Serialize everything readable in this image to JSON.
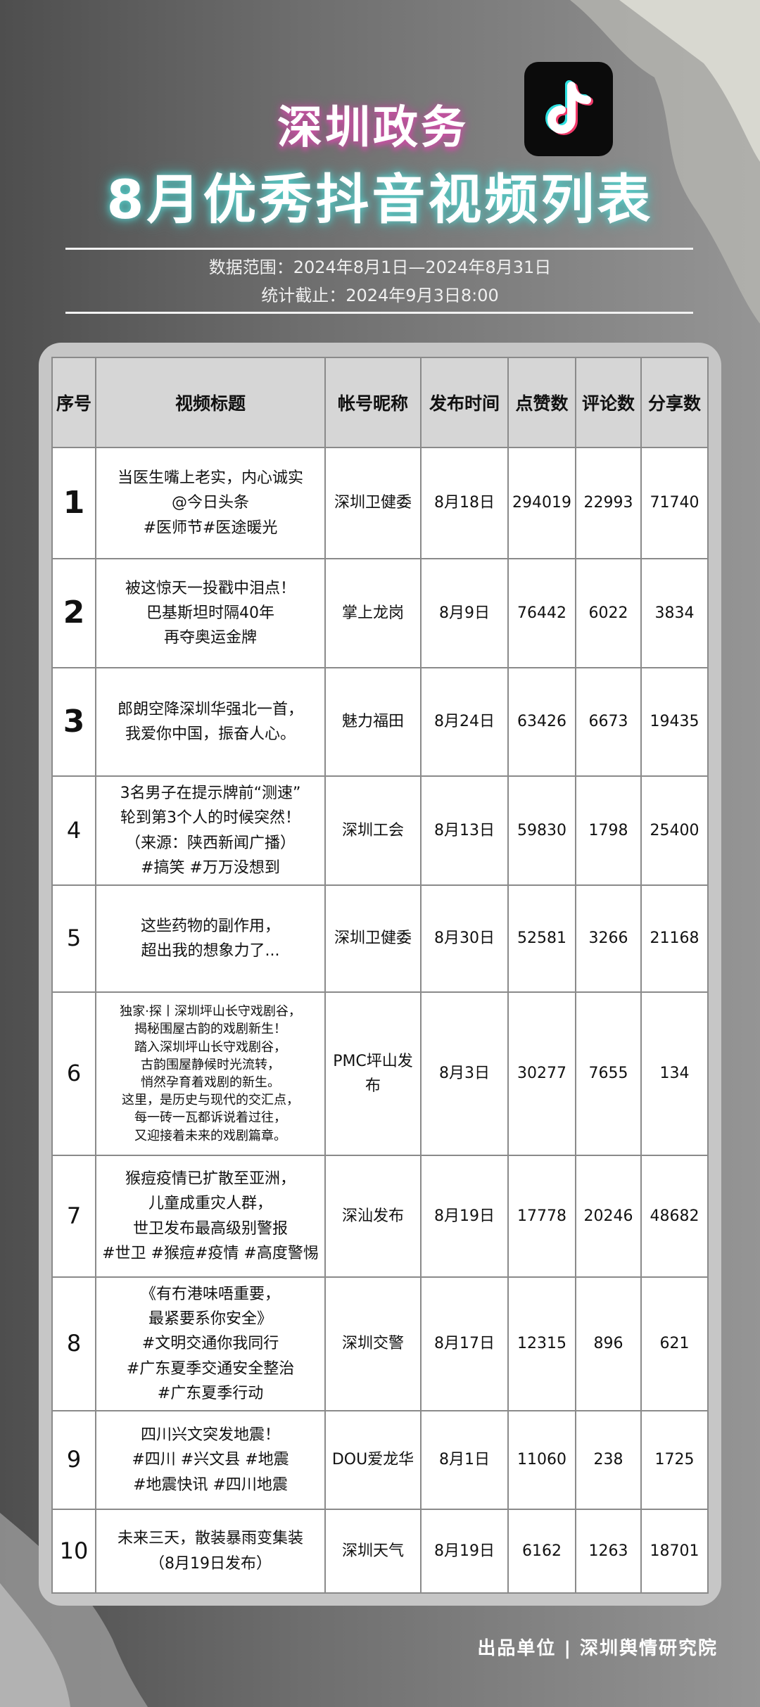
{
  "header": {
    "title_line1": "深圳政务",
    "title_line2": "8月优秀抖音视频列表",
    "logo": "tiktok-icon",
    "data_range": "数据范围：2024年8月1日—2024年8月31日",
    "cutoff": "统计截止：2024年9月3日8:00"
  },
  "table": {
    "columns": [
      "序号",
      "视频标题",
      "帐号昵称",
      "发布时间",
      "点赞数",
      "评论数",
      "分享数"
    ],
    "rows": [
      {
        "no": "1",
        "title": [
          "当医生嘴上老实，内心诚实",
          "@今日头条",
          "#医师节#医途暖光"
        ],
        "account": "深圳卫健委",
        "date": "8月18日",
        "likes": "294019",
        "comments": "22993",
        "shares": "71740"
      },
      {
        "no": "2",
        "title": [
          "被这惊天一投戳中泪点！",
          "巴基斯坦时隔40年",
          "再夺奥运金牌"
        ],
        "account": "掌上龙岗",
        "date": "8月9日",
        "likes": "76442",
        "comments": "6022",
        "shares": "3834"
      },
      {
        "no": "3",
        "title": [
          "郎朗空降深圳华强北一首，",
          "我爱你中国，振奋人心。"
        ],
        "account": "魅力福田",
        "date": "8月24日",
        "likes": "63426",
        "comments": "6673",
        "shares": "19435"
      },
      {
        "no": "4",
        "title": [
          "3名男子在提示牌前“测速”",
          "轮到第3个人的时候突然！",
          "（来源：陕西新闻广播）",
          "#搞笑 #万万没想到"
        ],
        "account": "深圳工会",
        "date": "8月13日",
        "likes": "59830",
        "comments": "1798",
        "shares": "25400"
      },
      {
        "no": "5",
        "title": [
          "这些药物的副作用，",
          "超出我的想象力了..."
        ],
        "account": "深圳卫健委",
        "date": "8月30日",
        "likes": "52581",
        "comments": "3266",
        "shares": "21168"
      },
      {
        "no": "6",
        "title": [
          "独家·探丨深圳坪山长守戏剧谷，",
          "揭秘围屋古韵的戏剧新生！",
          "踏入深圳坪山长守戏剧谷，",
          "古韵围屋静候时光流转，",
          "悄然孕育着戏剧的新生。",
          "这里，是历史与现代的交汇点，",
          "每一砖一瓦都诉说着过往，",
          "又迎接着未来的戏剧篇章。"
        ],
        "account": "PMC坪山发布",
        "date": "8月3日",
        "likes": "30277",
        "comments": "7655",
        "shares": "134"
      },
      {
        "no": "7",
        "title": [
          "猴痘疫情已扩散至亚洲，",
          "儿童成重灾人群，",
          "世卫发布最高级别警报",
          "#世卫 #猴痘#疫情 #高度警惕"
        ],
        "account": "深汕发布",
        "date": "8月19日",
        "likes": "17778",
        "comments": "20246",
        "shares": "48682"
      },
      {
        "no": "8",
        "title": [
          "《有冇港味唔重要，",
          "最紧要系你安全》",
          "#文明交通你我同行",
          "#广东夏季交通安全整治",
          "#广东夏季行动"
        ],
        "account": "深圳交警",
        "date": "8月17日",
        "likes": "12315",
        "comments": "896",
        "shares": "621"
      },
      {
        "no": "9",
        "title": [
          "四川兴文突发地震！",
          "#四川 #兴文县 #地震",
          "#地震快讯 #四川地震"
        ],
        "account": "DOU爱龙华",
        "date": "8月1日",
        "likes": "11060",
        "comments": "238",
        "shares": "1725"
      },
      {
        "no": "10",
        "title": [
          "未来三天，散装暴雨变集装",
          "（8月19日发布）"
        ],
        "account": "深圳天气",
        "date": "8月19日",
        "likes": "6162",
        "comments": "1263",
        "shares": "18701"
      }
    ]
  },
  "footer": {
    "producer": "出品单位 | 深圳舆情研究院"
  },
  "colors": {
    "title_glow_pink": "#d04fa8",
    "title_glow_cyan": "#5fd0cc",
    "header_bg": "#d6d6d6",
    "card_bg": "#c6c6c6"
  }
}
